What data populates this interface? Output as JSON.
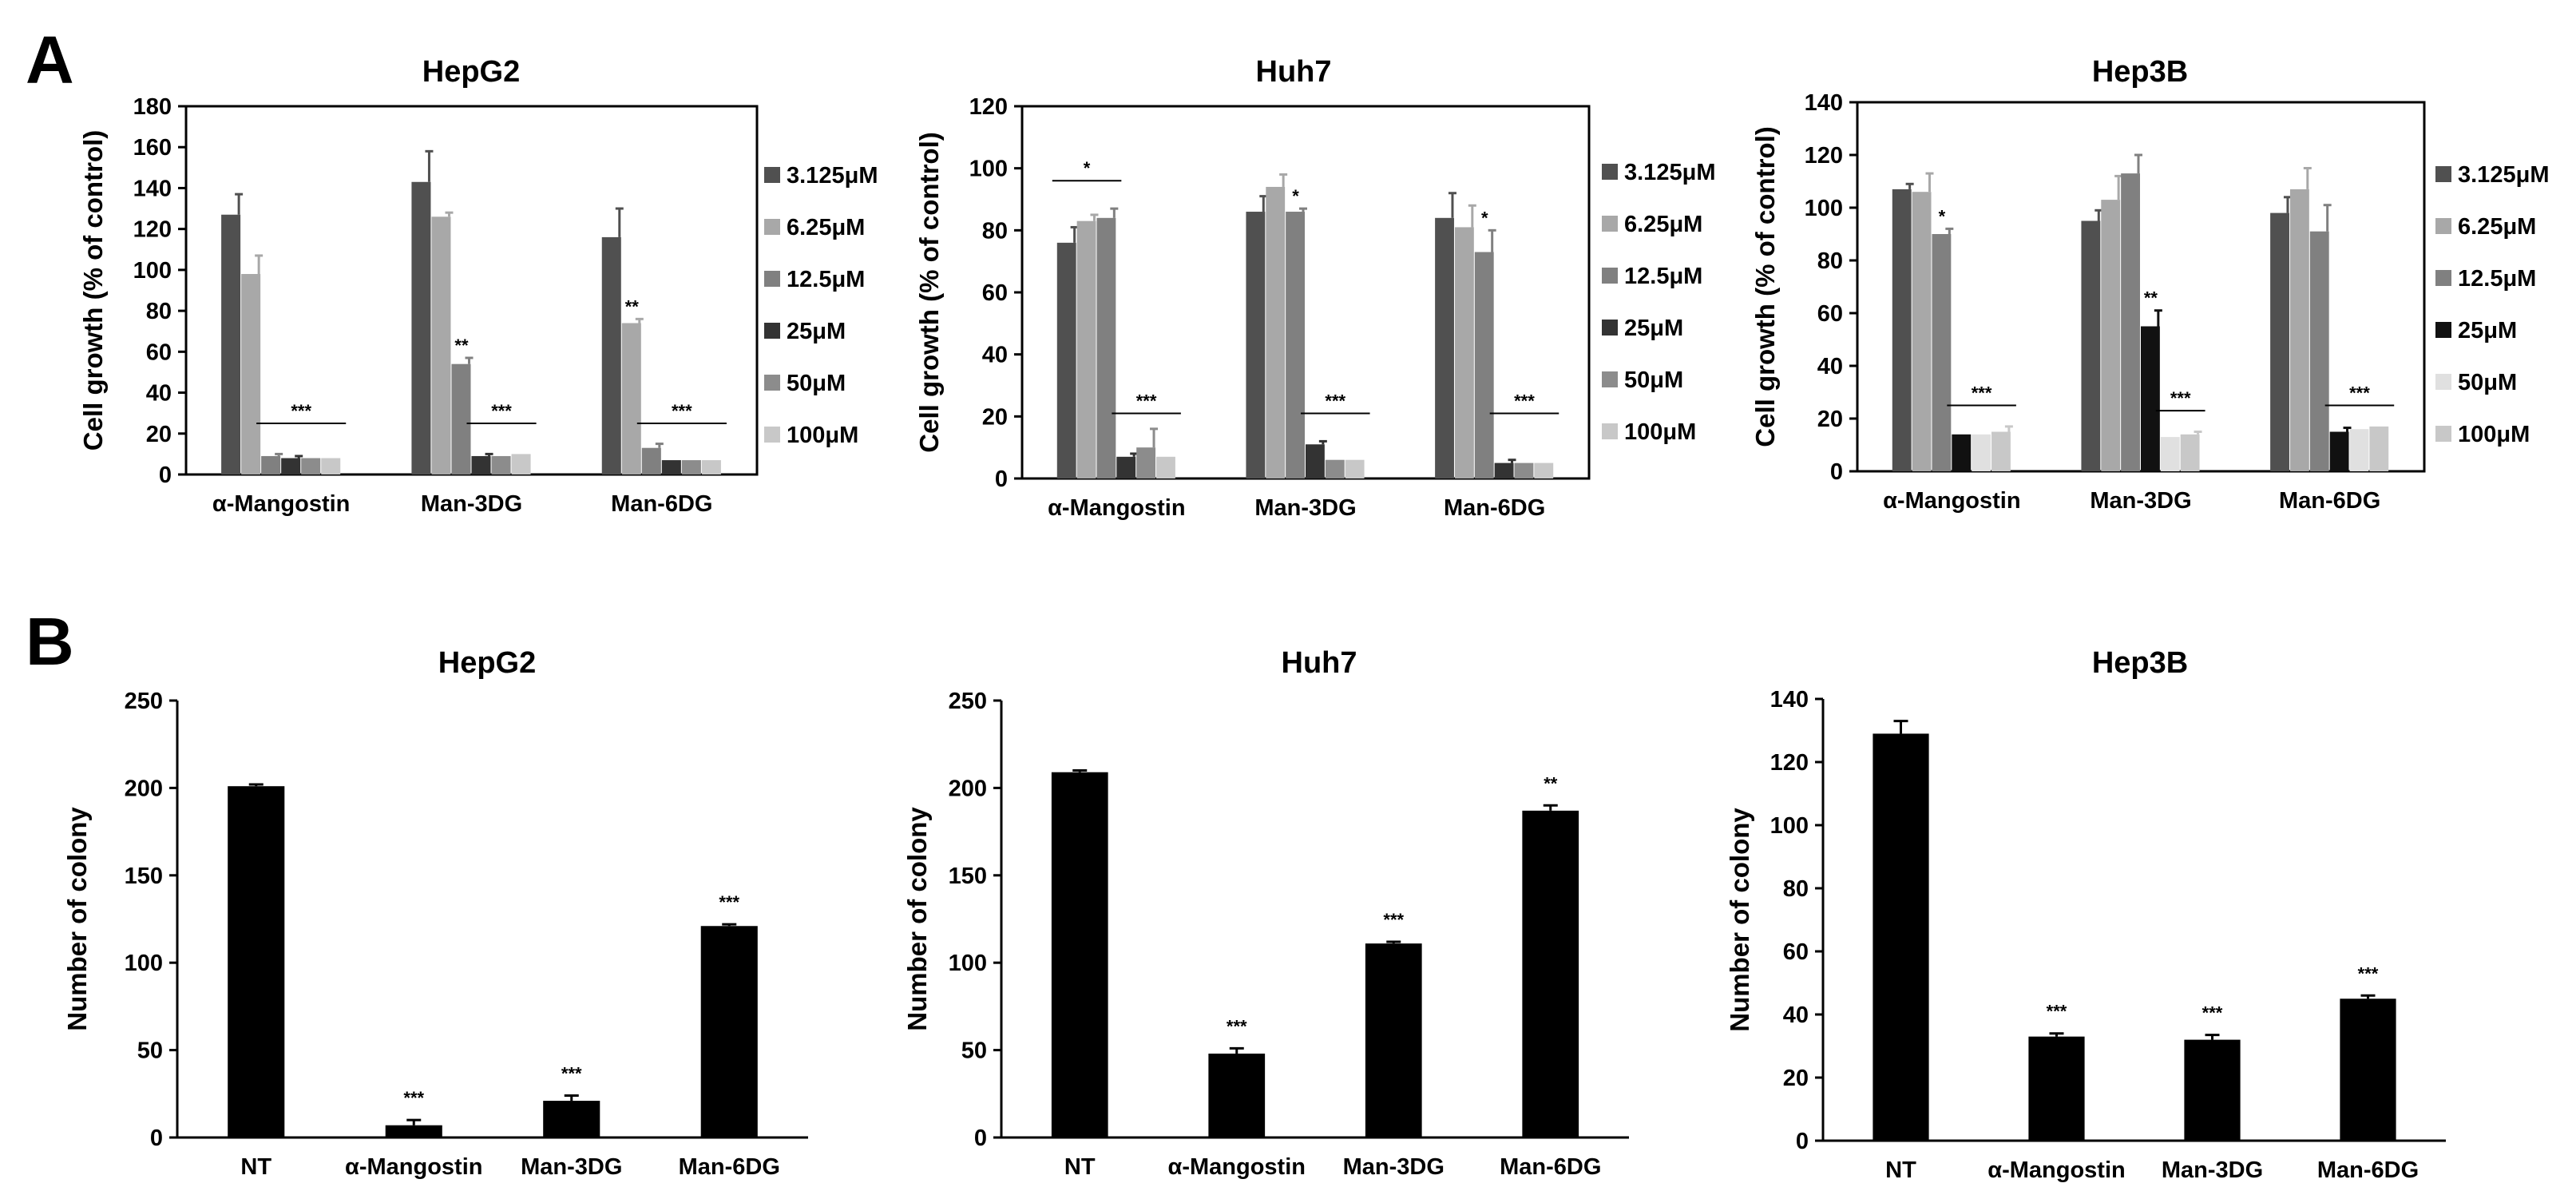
{
  "panels": {
    "a": "A",
    "b": "B"
  },
  "colors": {
    "c3": "#505050",
    "c6": "#a8a8a8",
    "c12": "#808080",
    "c25": "#333333",
    "c50": "#8c8c8c",
    "c100": "#c8c8c8",
    "c25_hep3b": "#111111",
    "c50_hep3b": "#e0e0e0",
    "bar_black": "#000000"
  },
  "chart_data": [
    {
      "id": "a-hepg2",
      "type": "bar",
      "title": "HepG2",
      "ylabel": "Cell growth (% of control)",
      "xlabel": "",
      "ylim": [
        0,
        180
      ],
      "yticks": [
        0,
        20,
        40,
        60,
        80,
        100,
        120,
        140,
        160,
        180
      ],
      "categories": [
        "α-Mangostin",
        "Man-3DG",
        "Man-6DG"
      ],
      "series": [
        {
          "name": "3.125μM",
          "color": "c3",
          "values": [
            127,
            143,
            116
          ],
          "errors": [
            10,
            15,
            14
          ]
        },
        {
          "name": "6.25μM",
          "color": "c6",
          "values": [
            98,
            126,
            74
          ],
          "errors": [
            9,
            2,
            2
          ]
        },
        {
          "name": "12.5μM",
          "color": "c12",
          "values": [
            9,
            54,
            13
          ],
          "errors": [
            1,
            3,
            2
          ]
        },
        {
          "name": "25μM",
          "color": "c25",
          "values": [
            8,
            9,
            7
          ],
          "errors": [
            1,
            1,
            0.5
          ]
        },
        {
          "name": "50μM",
          "color": "c50",
          "values": [
            8,
            9,
            7
          ],
          "errors": [
            0.5,
            0.5,
            0.5
          ]
        },
        {
          "name": "100μM",
          "color": "c100",
          "values": [
            8,
            10,
            7
          ],
          "errors": [
            0.5,
            0.5,
            0.5
          ]
        }
      ],
      "annotations": [
        {
          "text": "**",
          "group": 1,
          "series": 2
        },
        {
          "text": "**",
          "group": 2,
          "series": 1
        },
        {
          "text": "***",
          "group": 0,
          "from": 2,
          "to": 5,
          "y": 25
        },
        {
          "text": "***",
          "group": 1,
          "from": 3,
          "to": 5,
          "y": 25
        },
        {
          "text": "***",
          "group": 2,
          "from": 2,
          "to": 5,
          "y": 25
        }
      ]
    },
    {
      "id": "a-huh7",
      "type": "bar",
      "title": "Huh7",
      "ylabel": "Cell growth (% of control)",
      "xlabel": "",
      "ylim": [
        0,
        120
      ],
      "yticks": [
        0,
        20,
        40,
        60,
        80,
        100,
        120
      ],
      "categories": [
        "α-Mangostin",
        "Man-3DG",
        "Man-6DG"
      ],
      "series": [
        {
          "name": "3.125μM",
          "color": "c3",
          "values": [
            76,
            86,
            84
          ],
          "errors": [
            5,
            5,
            8
          ]
        },
        {
          "name": "6.25μM",
          "color": "c6",
          "values": [
            83,
            94,
            81
          ],
          "errors": [
            2,
            4,
            7
          ]
        },
        {
          "name": "12.5μM",
          "color": "c12",
          "values": [
            84,
            86,
            73
          ],
          "errors": [
            3,
            1,
            7
          ]
        },
        {
          "name": "25μM",
          "color": "c25",
          "values": [
            7,
            11,
            5
          ],
          "errors": [
            1,
            1,
            1
          ]
        },
        {
          "name": "50μM",
          "color": "c50",
          "values": [
            10,
            6,
            5
          ],
          "errors": [
            6,
            0.5,
            0.5
          ]
        },
        {
          "name": "100μM",
          "color": "c100",
          "values": [
            7,
            6,
            5
          ],
          "errors": [
            0.5,
            0.5,
            0.5
          ]
        }
      ],
      "annotations": [
        {
          "text": "*",
          "group": 1,
          "series": 2
        },
        {
          "text": "*",
          "group": 2,
          "series": 2
        },
        {
          "text": "*",
          "group": 0,
          "from": 0,
          "to": 2,
          "y": 96
        },
        {
          "text": "***",
          "group": 0,
          "from": 3,
          "to": 5,
          "y": 21
        },
        {
          "text": "***",
          "group": 1,
          "from": 3,
          "to": 5,
          "y": 21
        },
        {
          "text": "***",
          "group": 2,
          "from": 3,
          "to": 5,
          "y": 21
        }
      ]
    },
    {
      "id": "a-hep3b",
      "type": "bar",
      "title": "Hep3B",
      "ylabel": "Cell growth (% of control)",
      "xlabel": "",
      "ylim": [
        0,
        140
      ],
      "yticks": [
        0,
        20,
        40,
        60,
        80,
        100,
        120,
        140
      ],
      "categories": [
        "α-Mangostin",
        "Man-3DG",
        "Man-6DG"
      ],
      "series": [
        {
          "name": "3.125μM",
          "color": "c3",
          "values": [
            107,
            95,
            98
          ],
          "errors": [
            2,
            4,
            6
          ]
        },
        {
          "name": "6.25μM",
          "color": "c6",
          "values": [
            106,
            103,
            107
          ],
          "errors": [
            7,
            9,
            8
          ]
        },
        {
          "name": "12.5μM",
          "color": "c12",
          "values": [
            90,
            113,
            91
          ],
          "errors": [
            2,
            7,
            10
          ]
        },
        {
          "name": "25μM",
          "color": "c25_hep3b",
          "values": [
            14,
            55,
            15
          ],
          "errors": [
            0.5,
            6,
            1.5
          ]
        },
        {
          "name": "50μM",
          "color": "c50_hep3b",
          "values": [
            14,
            13,
            16
          ],
          "errors": [
            0.5,
            0.5,
            0.5
          ]
        },
        {
          "name": "100μM",
          "color": "c100",
          "values": [
            15,
            14,
            17
          ],
          "errors": [
            2,
            1,
            0.5
          ]
        }
      ],
      "annotations": [
        {
          "text": "*",
          "group": 0,
          "series": 2
        },
        {
          "text": "**",
          "group": 1,
          "series": 3
        },
        {
          "text": "***",
          "group": 0,
          "from": 3,
          "to": 5,
          "y": 25
        },
        {
          "text": "***",
          "group": 1,
          "from": 4,
          "to": 5,
          "y": 23
        },
        {
          "text": "***",
          "group": 2,
          "from": 3,
          "to": 5,
          "y": 25
        }
      ]
    },
    {
      "id": "b-hepg2",
      "type": "bar",
      "title": "HepG2",
      "ylabel": "Number of colony",
      "xlabel": "",
      "ylim": [
        0,
        250
      ],
      "yticks": [
        0,
        50,
        100,
        150,
        200,
        250
      ],
      "categories": [
        "NT",
        "α-Mangostin",
        "Man-3DG",
        "Man-6DG"
      ],
      "values": [
        201,
        7,
        21,
        121
      ],
      "errors": [
        1,
        3,
        3,
        1
      ],
      "labels": [
        "",
        "***",
        "***",
        "***"
      ]
    },
    {
      "id": "b-huh7",
      "type": "bar",
      "title": "Huh7",
      "ylabel": "Number of colony",
      "xlabel": "",
      "ylim": [
        0,
        250
      ],
      "yticks": [
        0,
        50,
        100,
        150,
        200,
        250
      ],
      "categories": [
        "NT",
        "α-Mangostin",
        "Man-3DG",
        "Man-6DG"
      ],
      "values": [
        209,
        48,
        111,
        187
      ],
      "errors": [
        1,
        3,
        1,
        3
      ],
      "labels": [
        "",
        "***",
        "***",
        "**"
      ]
    },
    {
      "id": "b-hep3b",
      "type": "bar",
      "title": "Hep3B",
      "ylabel": "Number of colony",
      "xlabel": "",
      "ylim": [
        0,
        140
      ],
      "yticks": [
        0,
        20,
        40,
        60,
        80,
        100,
        120,
        140
      ],
      "categories": [
        "NT",
        "α-Mangostin",
        "Man-3DG",
        "Man-6DG"
      ],
      "values": [
        129,
        33,
        32,
        45
      ],
      "errors": [
        4,
        1,
        1.5,
        1
      ],
      "labels": [
        "",
        "***",
        "***",
        "***"
      ]
    }
  ]
}
